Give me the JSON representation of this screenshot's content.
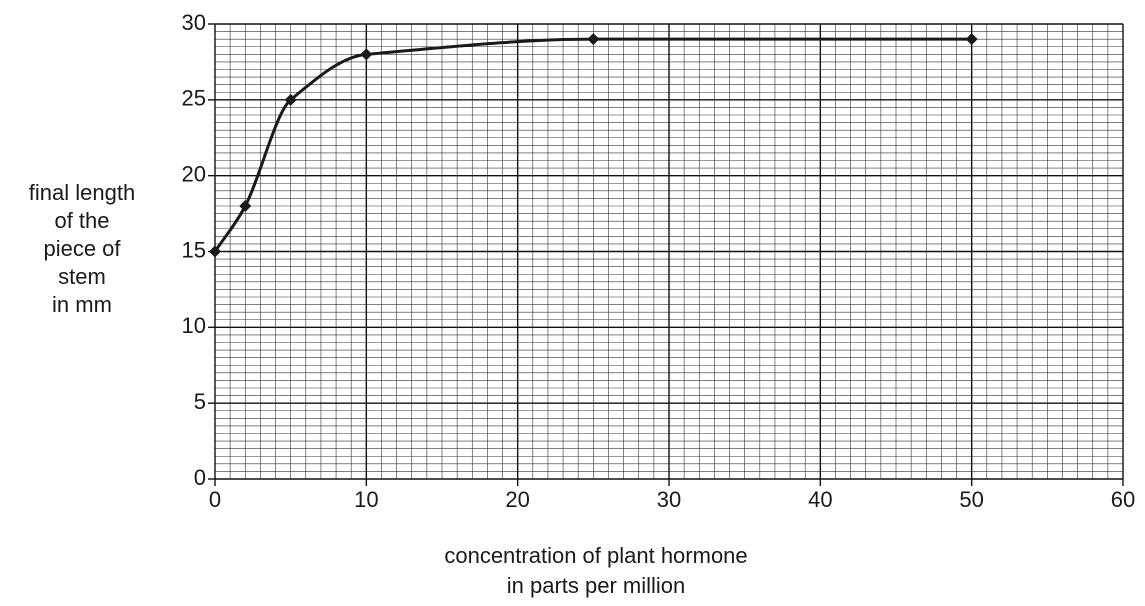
{
  "chart_data": {
    "type": "line",
    "ylabel": [
      "final length",
      "of the",
      "piece of",
      "stem",
      "in mm"
    ],
    "xlabel": [
      "concentration of plant hormone",
      "in parts per million"
    ],
    "x": [
      0,
      2,
      5,
      10,
      25,
      50
    ],
    "series": [
      {
        "color": "#1a1a1a",
        "values": [
          15,
          18,
          25,
          28,
          29,
          29
        ]
      }
    ],
    "xlim": [
      0,
      60
    ],
    "xticks": [
      0,
      10,
      20,
      30,
      40,
      50,
      60
    ],
    "ylim": [
      0,
      30
    ],
    "yticks": [
      0,
      5,
      10,
      15,
      20,
      25,
      30
    ],
    "grid": true,
    "minor_grid": {
      "x": 1,
      "y": 0.5
    },
    "smooth": true
  }
}
